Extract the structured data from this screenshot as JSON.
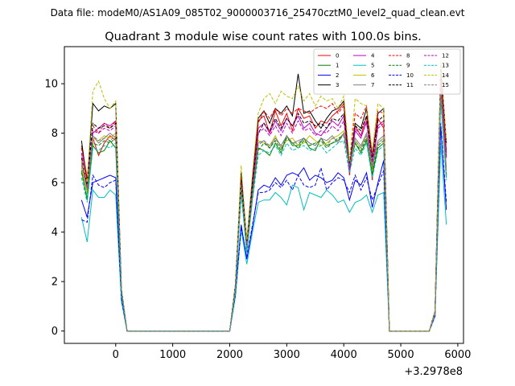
{
  "figure": {
    "suptitle": "Data file: modeM0/AS1A09_085T02_9000003716_25470cztM0_level2_quad_clean.evt"
  },
  "chart_data": {
    "type": "line",
    "title": "Quadrant 3 module wise count rates with 100.0s bins.",
    "xlabel": "",
    "ylabel": "",
    "x_offset_label": "+3.2978e8",
    "xlim": [
      -900,
      6100
    ],
    "ylim": [
      -0.5,
      11.5
    ],
    "x_ticks": [
      0,
      1000,
      2000,
      3000,
      4000,
      5000,
      6000
    ],
    "x_tick_labels": [
      "0",
      "1000",
      "2000",
      "3000",
      "4000",
      "5000",
      "6000"
    ],
    "y_ticks": [
      0,
      2,
      4,
      6,
      8,
      10
    ],
    "y_tick_labels": [
      "0",
      "2",
      "4",
      "6",
      "8",
      "10"
    ],
    "grid": false,
    "legend_position": "top-right",
    "legend_columns": 4,
    "x": [
      -600,
      -500,
      -400,
      -300,
      -200,
      -100,
      0,
      100,
      200,
      300,
      400,
      500,
      600,
      700,
      800,
      900,
      1000,
      1100,
      1200,
      1300,
      1400,
      1500,
      1600,
      1700,
      1800,
      1900,
      2000,
      2100,
      2200,
      2300,
      2400,
      2500,
      2600,
      2700,
      2800,
      2900,
      3000,
      3100,
      3200,
      3300,
      3400,
      3500,
      3600,
      3700,
      3800,
      3900,
      4000,
      4100,
      4200,
      4300,
      4400,
      4500,
      4600,
      4700,
      4800,
      4900,
      5000,
      5100,
      5200,
      5300,
      5400,
      5500,
      5600,
      5700,
      5800
    ],
    "series": [
      {
        "name": "0",
        "color": "#ff0000",
        "dash": "solid",
        "values": [
          7.5,
          6.2,
          7.8,
          7.1,
          7.6,
          7.9,
          7.7,
          1.6,
          0,
          0,
          0,
          0,
          0,
          0,
          0,
          0,
          0,
          0,
          0,
          0,
          0,
          0,
          0,
          0,
          0,
          0,
          0,
          1.8,
          6.3,
          3.6,
          6.0,
          8.5,
          8.7,
          8.0,
          8.9,
          8.3,
          8.8,
          8.1,
          9.0,
          8.6,
          8.7,
          8.2,
          8.5,
          8.4,
          8.7,
          8.9,
          9.2,
          6.3,
          8.3,
          7.9,
          8.7,
          6.1,
          8.6,
          8.2,
          0,
          0,
          0,
          0,
          0,
          0,
          0,
          0,
          0.8,
          10.2,
          7.0
        ]
      },
      {
        "name": "1",
        "color": "#008000",
        "dash": "solid",
        "values": [
          6.5,
          5.3,
          7.5,
          7.2,
          7.3,
          7.7,
          7.4,
          1.5,
          0,
          0,
          0,
          0,
          0,
          0,
          0,
          0,
          0,
          0,
          0,
          0,
          0,
          0,
          0,
          0,
          0,
          0,
          0,
          1.7,
          5.7,
          3.2,
          5.4,
          7.4,
          7.3,
          7.1,
          7.6,
          7.2,
          7.9,
          7.5,
          7.5,
          7.8,
          7.4,
          7.3,
          7.8,
          7.5,
          7.6,
          7.7,
          8.0,
          6.7,
          7.6,
          7.2,
          7.7,
          6.3,
          7.4,
          7.6,
          0,
          0,
          0,
          0,
          0,
          0,
          0,
          0,
          0.7,
          9.5,
          6.2
        ]
      },
      {
        "name": "2",
        "color": "#0000ff",
        "dash": "solid",
        "values": [
          5.3,
          4.6,
          6.0,
          6.1,
          6.2,
          6.3,
          6.2,
          1.3,
          0,
          0,
          0,
          0,
          0,
          0,
          0,
          0,
          0,
          0,
          0,
          0,
          0,
          0,
          0,
          0,
          0,
          0,
          0,
          1.5,
          4.3,
          2.9,
          4.2,
          5.7,
          5.9,
          5.8,
          6.2,
          5.9,
          6.3,
          6.4,
          6.3,
          6.6,
          6.1,
          6.3,
          6.2,
          6.0,
          6.1,
          6.4,
          6.2,
          5.3,
          6.1,
          5.9,
          6.4,
          5.0,
          6.0,
          6.9,
          0,
          0,
          0,
          0,
          0,
          0,
          0,
          0,
          0.6,
          8.3,
          4.9
        ]
      },
      {
        "name": "3",
        "color": "#000000",
        "dash": "solid",
        "values": [
          7.7,
          6.0,
          9.2,
          8.9,
          9.1,
          9.0,
          9.2,
          1.7,
          0,
          0,
          0,
          0,
          0,
          0,
          0,
          0,
          0,
          0,
          0,
          0,
          0,
          0,
          0,
          0,
          0,
          0,
          0,
          1.9,
          6.4,
          3.6,
          6.2,
          8.6,
          8.9,
          8.4,
          9.0,
          8.8,
          9.1,
          8.7,
          10.4,
          8.8,
          8.9,
          8.5,
          8.2,
          8.6,
          8.9,
          9.0,
          9.3,
          6.7,
          8.4,
          8.2,
          9.0,
          7.0,
          8.8,
          9.0,
          0,
          0,
          0,
          0,
          0,
          0,
          0,
          0,
          0.8,
          10.8,
          7.6
        ]
      },
      {
        "name": "4",
        "color": "#bf00bf",
        "dash": "solid",
        "values": [
          7.2,
          5.8,
          8.0,
          8.2,
          8.4,
          8.3,
          8.5,
          1.6,
          0,
          0,
          0,
          0,
          0,
          0,
          0,
          0,
          0,
          0,
          0,
          0,
          0,
          0,
          0,
          0,
          0,
          0,
          0,
          1.8,
          6.0,
          3.5,
          5.8,
          8.2,
          8.4,
          8.0,
          8.5,
          8.1,
          8.6,
          8.3,
          8.7,
          8.2,
          8.4,
          8.0,
          7.9,
          8.2,
          8.5,
          8.3,
          8.7,
          6.4,
          8.1,
          7.8,
          8.5,
          6.6,
          8.3,
          8.5,
          0,
          0,
          0,
          0,
          0,
          0,
          0,
          0,
          0.8,
          10.4,
          7.2
        ]
      },
      {
        "name": "5",
        "color": "#00bfbf",
        "dash": "solid",
        "values": [
          4.6,
          3.6,
          5.7,
          5.4,
          5.4,
          5.7,
          5.5,
          1.2,
          0,
          0,
          0,
          0,
          0,
          0,
          0,
          0,
          0,
          0,
          0,
          0,
          0,
          0,
          0,
          0,
          0,
          0,
          0,
          1.4,
          4.1,
          2.7,
          4.0,
          5.2,
          5.3,
          5.3,
          5.6,
          5.4,
          5.1,
          5.9,
          5.8,
          4.9,
          5.6,
          5.5,
          5.4,
          5.7,
          5.5,
          5.2,
          5.3,
          4.8,
          5.2,
          5.3,
          5.5,
          4.8,
          5.5,
          5.6,
          0,
          0,
          0,
          0,
          0,
          0,
          0,
          0,
          0.6,
          7.6,
          4.3
        ]
      },
      {
        "name": "6",
        "color": "#bfbf00",
        "dash": "solid",
        "values": [
          6.6,
          5.6,
          7.8,
          7.7,
          7.9,
          7.8,
          8.0,
          1.6,
          0,
          0,
          0,
          0,
          0,
          0,
          0,
          0,
          0,
          0,
          0,
          0,
          0,
          0,
          0,
          0,
          0,
          0,
          0,
          1.7,
          5.9,
          3.4,
          5.6,
          7.7,
          7.6,
          7.5,
          7.9,
          7.4,
          7.7,
          7.8,
          7.5,
          7.6,
          7.9,
          7.7,
          7.5,
          7.6,
          7.8,
          7.9,
          8.1,
          6.8,
          7.7,
          7.4,
          7.9,
          6.5,
          7.6,
          7.8,
          0,
          0,
          0,
          0,
          0,
          0,
          0,
          0,
          0.7,
          9.8,
          6.5
        ]
      },
      {
        "name": "7",
        "color": "#808080",
        "dash": "solid",
        "values": [
          6.8,
          5.7,
          7.9,
          7.6,
          7.8,
          8.0,
          7.8,
          1.6,
          0,
          0,
          0,
          0,
          0,
          0,
          0,
          0,
          0,
          0,
          0,
          0,
          0,
          0,
          0,
          0,
          0,
          0,
          0,
          1.8,
          6.0,
          3.5,
          5.7,
          7.6,
          7.7,
          7.4,
          7.8,
          7.5,
          7.9,
          7.6,
          7.7,
          7.8,
          7.6,
          7.5,
          7.8,
          7.7,
          7.9,
          7.6,
          8.0,
          6.9,
          7.8,
          7.5,
          8.0,
          6.7,
          7.7,
          7.9,
          0,
          0,
          0,
          0,
          0,
          0,
          0,
          0,
          0.7,
          9.9,
          6.6
        ]
      },
      {
        "name": "8",
        "color": "#ff0000",
        "dash": "dashed",
        "values": [
          7.4,
          6.1,
          8.3,
          8.0,
          8.4,
          8.2,
          8.5,
          1.6,
          0,
          0,
          0,
          0,
          0,
          0,
          0,
          0,
          0,
          0,
          0,
          0,
          0,
          0,
          0,
          0,
          0,
          0,
          0,
          1.8,
          6.2,
          3.6,
          5.9,
          8.4,
          8.9,
          8.6,
          9.0,
          8.7,
          9.0,
          8.8,
          9.0,
          8.9,
          8.8,
          9.0,
          9.1,
          9.0,
          9.2,
          8.8,
          9.1,
          6.9,
          8.8,
          8.6,
          9.1,
          7.1,
          8.9,
          8.8,
          0,
          0,
          0,
          0,
          0,
          0,
          0,
          0,
          0.8,
          10.5,
          7.3
        ]
      },
      {
        "name": "9",
        "color": "#008000",
        "dash": "dashed",
        "values": [
          6.4,
          5.4,
          7.6,
          7.5,
          7.7,
          7.6,
          7.8,
          1.5,
          0,
          0,
          0,
          0,
          0,
          0,
          0,
          0,
          0,
          0,
          0,
          0,
          0,
          0,
          0,
          0,
          0,
          0,
          0,
          1.7,
          5.8,
          3.3,
          5.5,
          7.3,
          7.6,
          7.4,
          7.7,
          7.3,
          7.8,
          7.6,
          7.4,
          7.7,
          7.5,
          7.6,
          7.7,
          7.4,
          7.6,
          7.8,
          7.9,
          6.6,
          7.6,
          7.3,
          7.8,
          6.4,
          7.5,
          7.7,
          0,
          0,
          0,
          0,
          0,
          0,
          0,
          0,
          0.7,
          9.6,
          6.3
        ]
      },
      {
        "name": "10",
        "color": "#0000ff",
        "dash": "dashed",
        "values": [
          4.5,
          4.4,
          6.3,
          5.9,
          5.8,
          6.0,
          6.1,
          1.3,
          0,
          0,
          0,
          0,
          0,
          0,
          0,
          0,
          0,
          0,
          0,
          0,
          0,
          0,
          0,
          0,
          0,
          0,
          0,
          1.5,
          4.2,
          3.0,
          4.3,
          5.6,
          5.6,
          5.7,
          6.0,
          5.8,
          6.1,
          5.7,
          6.3,
          5.9,
          5.8,
          5.9,
          6.6,
          5.7,
          6.0,
          6.2,
          6.1,
          5.6,
          6.3,
          5.7,
          6.2,
          5.3,
          5.9,
          6.5,
          0,
          0,
          0,
          0,
          0,
          0,
          0,
          0,
          0.6,
          8.4,
          5.2
        ]
      },
      {
        "name": "11",
        "color": "#000000",
        "dash": "dashed",
        "values": [
          7.0,
          5.9,
          8.4,
          8.2,
          8.3,
          8.2,
          8.4,
          1.6,
          0,
          0,
          0,
          0,
          0,
          0,
          0,
          0,
          0,
          0,
          0,
          0,
          0,
          0,
          0,
          0,
          0,
          0,
          0,
          1.8,
          6.1,
          3.5,
          5.9,
          8.0,
          8.4,
          8.1,
          8.6,
          8.2,
          8.6,
          8.3,
          8.8,
          8.4,
          8.5,
          8.3,
          8.4,
          8.2,
          8.6,
          8.5,
          8.8,
          6.8,
          8.3,
          8.1,
          8.7,
          6.9,
          8.5,
          8.7,
          0,
          0,
          0,
          0,
          0,
          0,
          0,
          0,
          0.8,
          10.3,
          7.1
        ]
      },
      {
        "name": "12",
        "color": "#bf00bf",
        "dash": "dashed",
        "values": [
          6.9,
          5.8,
          8.1,
          8.0,
          8.2,
          8.1,
          8.3,
          1.6,
          0,
          0,
          0,
          0,
          0,
          0,
          0,
          0,
          0,
          0,
          0,
          0,
          0,
          0,
          0,
          0,
          0,
          0,
          0,
          1.8,
          6.0,
          3.4,
          5.8,
          8.0,
          8.2,
          7.9,
          8.3,
          7.9,
          8.4,
          8.0,
          8.5,
          8.1,
          8.2,
          7.9,
          8.1,
          8.0,
          8.3,
          8.1,
          8.5,
          6.6,
          8.2,
          7.9,
          8.4,
          6.8,
          8.2,
          8.4,
          0,
          0,
          0,
          0,
          0,
          0,
          0,
          0,
          0.8,
          10.1,
          7.0
        ]
      },
      {
        "name": "13",
        "color": "#00bfbf",
        "dash": "dashed",
        "values": [
          6.2,
          5.2,
          7.4,
          7.3,
          7.5,
          7.4,
          7.6,
          1.5,
          0,
          0,
          0,
          0,
          0,
          0,
          0,
          0,
          0,
          0,
          0,
          0,
          0,
          0,
          0,
          0,
          0,
          0,
          0,
          1.6,
          5.5,
          3.2,
          5.3,
          7.1,
          7.3,
          7.2,
          7.5,
          7.1,
          7.6,
          7.3,
          7.4,
          7.5,
          7.3,
          7.4,
          7.5,
          7.2,
          7.4,
          7.6,
          7.7,
          6.4,
          7.4,
          7.1,
          7.6,
          6.2,
          7.3,
          7.5,
          0,
          0,
          0,
          0,
          0,
          0,
          0,
          0,
          0.7,
          9.3,
          6.1
        ]
      },
      {
        "name": "14",
        "color": "#bfbf00",
        "dash": "dashed",
        "values": [
          6.9,
          6.0,
          9.7,
          10.1,
          9.4,
          9.0,
          9.3,
          1.7,
          0,
          0,
          0,
          0,
          0,
          0,
          0,
          0,
          0,
          0,
          0,
          0,
          0,
          0,
          0,
          0,
          0,
          0,
          0,
          1.9,
          6.7,
          3.7,
          6.4,
          8.8,
          9.4,
          9.6,
          9.2,
          9.7,
          9.5,
          9.4,
          9.9,
          9.3,
          9.6,
          9.1,
          9.5,
          9.3,
          9.4,
          9.0,
          9.5,
          6.9,
          9.4,
          9.2,
          9.1,
          7.3,
          9.2,
          9.0,
          0,
          0,
          0,
          0,
          0,
          0,
          0,
          0,
          0.8,
          10.9,
          7.7
        ]
      },
      {
        "name": "15",
        "color": "#808080",
        "dash": "dashed",
        "values": [
          6.7,
          5.7,
          7.9,
          7.7,
          7.8,
          7.7,
          7.9,
          1.6,
          0,
          0,
          0,
          0,
          0,
          0,
          0,
          0,
          0,
          0,
          0,
          0,
          0,
          0,
          0,
          0,
          0,
          0,
          0,
          1.7,
          5.9,
          3.4,
          5.6,
          7.5,
          7.7,
          7.5,
          7.8,
          7.4,
          7.9,
          7.6,
          7.6,
          7.8,
          7.6,
          7.5,
          7.7,
          7.5,
          7.8,
          7.7,
          7.9,
          6.7,
          7.7,
          7.4,
          7.9,
          6.6,
          7.6,
          7.8,
          0,
          0,
          0,
          0,
          0,
          0,
          0,
          0,
          0.7,
          9.7,
          6.4
        ]
      }
    ]
  }
}
